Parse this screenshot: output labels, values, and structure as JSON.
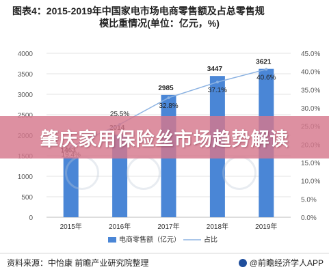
{
  "title_line1": "图表4：2015-2019年中国家电市场电商零售额及占总零售规",
  "title_line2": "模比重情况(单位：亿元，%)",
  "banner_text": "肇庆家用保险丝市场趋势解读",
  "footer": {
    "source": "资料来源：中怡康 前瞻产业研究院整理",
    "brand": "@前瞻经济学人APP"
  },
  "colors": {
    "bar": "#4a86d6",
    "line": "#8db3e2",
    "banner": "#d6788c"
  },
  "chart_data": {
    "type": "bar",
    "categories": [
      "2015年",
      "2016年",
      "2017年",
      "2018年",
      "2019年"
    ],
    "series": [
      {
        "name": "电商零售额（亿元）",
        "type": "bar",
        "values": [
          1463,
          2014,
          2985,
          3447,
          3621
        ],
        "labels": [
          "1463",
          "2014",
          "2985",
          "3447",
          "3621"
        ]
      },
      {
        "name": "占比",
        "type": "line",
        "values": [
          19.4,
          25.5,
          32.8,
          37.1,
          40.6
        ],
        "labels": [
          "19.4%",
          "25.5%",
          "32.8%",
          "37.1%",
          "40.6%"
        ]
      }
    ],
    "ylim": [
      0,
      4000
    ],
    "yticks": [
      "0",
      "500",
      "1000",
      "1500",
      "2000",
      "2500",
      "3000",
      "3500",
      "4000"
    ],
    "y2lim": [
      0,
      45
    ],
    "y2ticks": [
      "0.0%",
      "5.0%",
      "10.0%",
      "15.0%",
      "20.0%",
      "25.0%",
      "30.0%",
      "35.0%",
      "40.0%",
      "45.0%"
    ],
    "grid": true,
    "legend": "bottom"
  }
}
